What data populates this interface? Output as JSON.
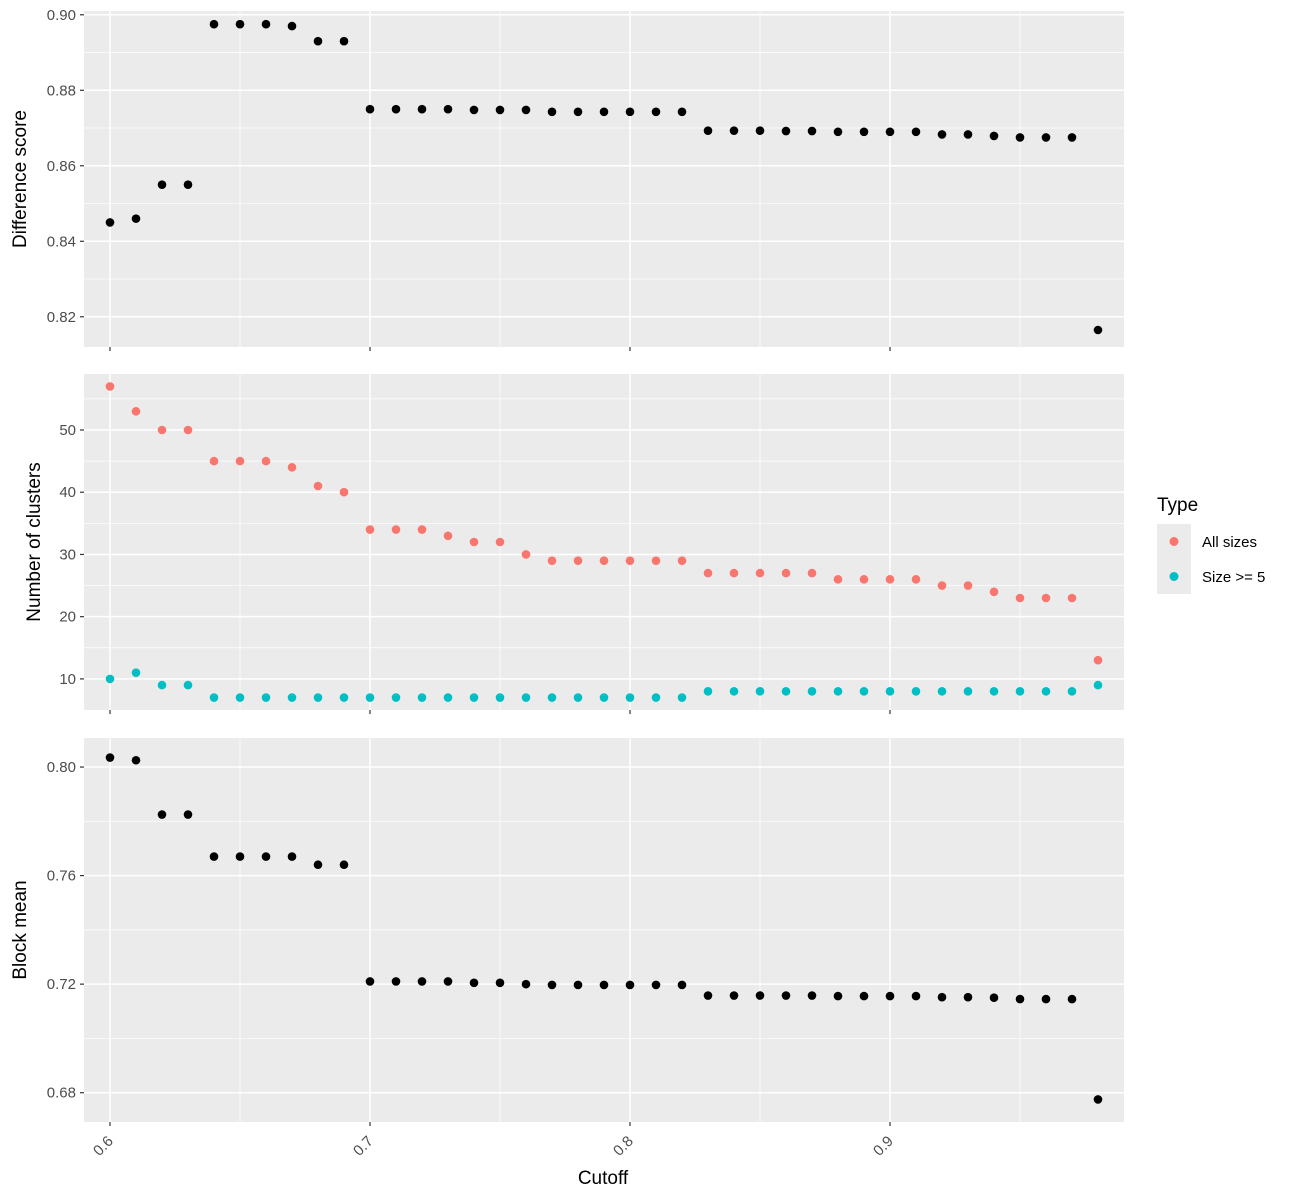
{
  "chart_data": [
    {
      "type": "scatter",
      "xlabel": "Cutoff",
      "ylabel": "Difference score",
      "xlim": [
        0.59,
        0.99
      ],
      "ylim": [
        0.812,
        0.901
      ],
      "yticks": [
        0.82,
        0.84,
        0.86,
        0.88,
        0.9
      ],
      "ytick_labels": [
        "0.82",
        "0.84",
        "0.86",
        "0.88",
        "0.90"
      ],
      "grid": true,
      "series": [
        {
          "color": "#000000",
          "x": [
            0.6,
            0.61,
            0.62,
            0.63,
            0.64,
            0.65,
            0.66,
            0.67,
            0.68,
            0.69,
            0.7,
            0.71,
            0.72,
            0.73,
            0.74,
            0.75,
            0.76,
            0.77,
            0.78,
            0.79,
            0.8,
            0.81,
            0.82,
            0.83,
            0.84,
            0.85,
            0.86,
            0.87,
            0.88,
            0.89,
            0.9,
            0.91,
            0.92,
            0.93,
            0.94,
            0.95,
            0.96,
            0.97,
            0.98
          ],
          "y": [
            0.845,
            0.846,
            0.855,
            0.855,
            0.8975,
            0.8975,
            0.8975,
            0.897,
            0.893,
            0.893,
            0.875,
            0.875,
            0.875,
            0.875,
            0.8748,
            0.8748,
            0.8748,
            0.8743,
            0.8743,
            0.8743,
            0.8743,
            0.8743,
            0.8743,
            0.8693,
            0.8693,
            0.8693,
            0.8692,
            0.8692,
            0.869,
            0.869,
            0.869,
            0.869,
            0.8683,
            0.8683,
            0.8679,
            0.8675,
            0.8675,
            0.8675,
            0.8165
          ]
        }
      ]
    },
    {
      "type": "scatter",
      "xlabel": "Cutoff",
      "ylabel": "Number of clusters",
      "xlim": [
        0.59,
        0.99
      ],
      "ylim": [
        5,
        59
      ],
      "yticks": [
        10,
        20,
        30,
        40,
        50
      ],
      "ytick_labels": [
        "10",
        "20",
        "30",
        "40",
        "50"
      ],
      "grid": true,
      "legend": {
        "title": "Type",
        "placement": "right"
      },
      "series": [
        {
          "name": "All sizes",
          "color": "#F8766D",
          "x": [
            0.6,
            0.61,
            0.62,
            0.63,
            0.64,
            0.65,
            0.66,
            0.67,
            0.68,
            0.69,
            0.7,
            0.71,
            0.72,
            0.73,
            0.74,
            0.75,
            0.76,
            0.77,
            0.78,
            0.79,
            0.8,
            0.81,
            0.82,
            0.83,
            0.84,
            0.85,
            0.86,
            0.87,
            0.88,
            0.89,
            0.9,
            0.91,
            0.92,
            0.93,
            0.94,
            0.95,
            0.96,
            0.97,
            0.98
          ],
          "y": [
            57,
            53,
            50,
            50,
            45,
            45,
            45,
            44,
            41,
            40,
            34,
            34,
            34,
            33,
            32,
            32,
            30,
            29,
            29,
            29,
            29,
            29,
            29,
            27,
            27,
            27,
            27,
            27,
            26,
            26,
            26,
            26,
            25,
            25,
            24,
            23,
            23,
            23,
            13
          ]
        },
        {
          "name": "Size >= 5",
          "color": "#00BFC4",
          "x": [
            0.6,
            0.61,
            0.62,
            0.63,
            0.64,
            0.65,
            0.66,
            0.67,
            0.68,
            0.69,
            0.7,
            0.71,
            0.72,
            0.73,
            0.74,
            0.75,
            0.76,
            0.77,
            0.78,
            0.79,
            0.8,
            0.81,
            0.82,
            0.83,
            0.84,
            0.85,
            0.86,
            0.87,
            0.88,
            0.89,
            0.9,
            0.91,
            0.92,
            0.93,
            0.94,
            0.95,
            0.96,
            0.97,
            0.98
          ],
          "y": [
            10,
            11,
            9,
            9,
            7,
            7,
            7,
            7,
            7,
            7,
            7,
            7,
            7,
            7,
            7,
            7,
            7,
            7,
            7,
            7,
            7,
            7,
            7,
            8,
            8,
            8,
            8,
            8,
            8,
            8,
            8,
            8,
            8,
            8,
            8,
            8,
            8,
            8,
            9
          ]
        }
      ]
    },
    {
      "type": "scatter",
      "xlabel": "Cutoff",
      "ylabel": "Block mean",
      "xlim": [
        0.59,
        0.99
      ],
      "ylim": [
        0.6692,
        0.8107
      ],
      "yticks": [
        0.68,
        0.72,
        0.76,
        0.8
      ],
      "ytick_labels": [
        "0.68",
        "0.72",
        "0.76",
        "0.80"
      ],
      "xticks": [
        0.6,
        0.7,
        0.8,
        0.9
      ],
      "xtick_labels": [
        "0.6",
        "0.7",
        "0.8",
        "0.9"
      ],
      "grid": true,
      "series": [
        {
          "color": "#000000",
          "x": [
            0.6,
            0.61,
            0.62,
            0.63,
            0.64,
            0.65,
            0.66,
            0.67,
            0.68,
            0.69,
            0.7,
            0.71,
            0.72,
            0.73,
            0.74,
            0.75,
            0.76,
            0.77,
            0.78,
            0.79,
            0.8,
            0.81,
            0.82,
            0.83,
            0.84,
            0.85,
            0.86,
            0.87,
            0.88,
            0.89,
            0.9,
            0.91,
            0.92,
            0.93,
            0.94,
            0.95,
            0.96,
            0.97,
            0.98
          ],
          "y": [
            0.8035,
            0.8025,
            0.7825,
            0.7825,
            0.767,
            0.767,
            0.767,
            0.767,
            0.764,
            0.764,
            0.721,
            0.721,
            0.721,
            0.721,
            0.7205,
            0.7205,
            0.72,
            0.7197,
            0.7197,
            0.7197,
            0.7197,
            0.7197,
            0.7197,
            0.7158,
            0.7158,
            0.7158,
            0.7158,
            0.7158,
            0.7156,
            0.7156,
            0.7156,
            0.7156,
            0.7152,
            0.7152,
            0.715,
            0.7145,
            0.7145,
            0.7145,
            0.6775
          ]
        }
      ]
    }
  ]
}
